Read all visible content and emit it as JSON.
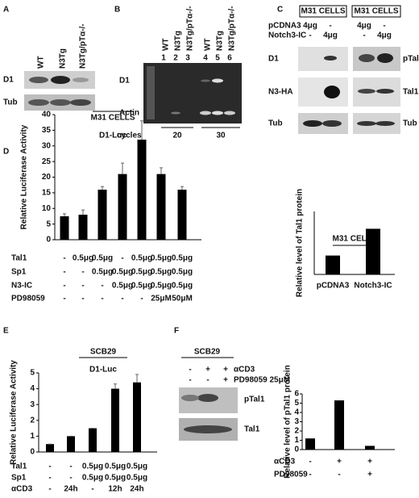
{
  "panels": [
    "A",
    "B",
    "C",
    "D",
    "E",
    "F"
  ],
  "blot_A": {
    "lanes": [
      "WT",
      "N3Tg",
      "N3Tg/pTα-/-"
    ],
    "rows": [
      "D1",
      "Tub"
    ]
  },
  "blot_B": {
    "lanes": [
      "WT",
      "N3Tg",
      "N3Tg/pTα-/-",
      "WT",
      "N3Tg",
      "N3Tg/pTα-/-"
    ],
    "lane_numbers": [
      1,
      2,
      3,
      4,
      5,
      6
    ],
    "rows": [
      "D1",
      "Actin"
    ],
    "cycles_label": "cycles",
    "cycles": [
      20,
      30
    ]
  },
  "blot_C": {
    "title": "M31 CELLS",
    "treatments": [
      {
        "name": "pCDNA3",
        "cells": [
          "4μg",
          "-"
        ]
      },
      {
        "name": "Notch3-IC",
        "cells": [
          "-",
          "4μg"
        ]
      }
    ],
    "rows_left": [
      "D1",
      "N3-HA",
      "Tub"
    ],
    "rows_right": [
      "pTal1",
      "Tal1",
      "Tub"
    ]
  },
  "blot_F": {
    "title": "SCB29",
    "treatments": [
      {
        "name": "αCD3",
        "cells": [
          "-",
          "+",
          "+"
        ]
      },
      {
        "name": "PD98059 25μM",
        "cells": [
          "-",
          "-",
          "+"
        ]
      }
    ],
    "rows": [
      "pTal1",
      "Tal1"
    ]
  },
  "chart_data": [
    {
      "type": "bar",
      "title": "M31 CELLS",
      "ylabel": "Relative level of Tal1 protein",
      "categories": [
        "pCDNA3",
        "Notch3-IC"
      ],
      "values": [
        1.2,
        2.9
      ],
      "ylim": [
        0,
        4
      ],
      "color": "#000000"
    },
    {
      "type": "bar",
      "title": "M31 CELLS",
      "subtitle": "D1-Luc",
      "ylabel": "Relative Luciferase Activity",
      "values": [
        7.5,
        8,
        16,
        21,
        32,
        21,
        16
      ],
      "errors": [
        0.8,
        1.5,
        1,
        3.5,
        6,
        2,
        1
      ],
      "ylim": [
        0,
        40
      ],
      "yticks": [
        0,
        5,
        10,
        15,
        20,
        25,
        30,
        35,
        40
      ],
      "color": "#000000",
      "conditions": [
        {
          "name": "Tal1",
          "cells": [
            "-",
            "0.5μg",
            "0.5μg",
            "-",
            "0.5μg",
            "0.5μg",
            "0.5μg"
          ]
        },
        {
          "name": "Sp1",
          "cells": [
            "-",
            "-",
            "0.5μg",
            "0.5μg",
            "0.5μg",
            "0.5μg",
            "0.5μg"
          ]
        },
        {
          "name": "N3-IC",
          "cells": [
            "-",
            "-",
            "-",
            "0.5μg",
            "0.5μg",
            "0.5μg",
            "0.5μg"
          ]
        },
        {
          "name": "PD98059",
          "cells": [
            "-",
            "-",
            "-",
            "-",
            "-",
            "25μM",
            "50μM"
          ]
        }
      ]
    },
    {
      "type": "bar",
      "title": "SCB29",
      "subtitle": "D1-Luc",
      "ylabel": "Relative Luciferase Activity",
      "values": [
        0.5,
        1.0,
        1.5,
        4.0,
        4.4
      ],
      "errors": [
        0,
        0,
        0,
        0.3,
        0.5
      ],
      "ylim": [
        0,
        5
      ],
      "yticks": [
        0,
        1,
        2,
        3,
        4,
        5
      ],
      "color": "#000000",
      "conditions": [
        {
          "name": "Tal1",
          "cells": [
            "-",
            "-",
            "0.5μg",
            "0.5μg",
            "0.5μg"
          ]
        },
        {
          "name": "Sp1",
          "cells": [
            "-",
            "-",
            "0.5μg",
            "0.5μg",
            "0.5μg"
          ]
        },
        {
          "name": "αCD3",
          "cells": [
            "-",
            "24h",
            "-",
            "12h",
            "24h"
          ]
        }
      ]
    },
    {
      "type": "bar",
      "ylabel": "Relative level of pTal1 protein",
      "values": [
        1.2,
        5.3,
        0.4
      ],
      "ylim": [
        0,
        6
      ],
      "yticks": [
        0,
        1,
        2,
        3,
        4,
        5,
        6
      ],
      "color": "#000000",
      "conditions": [
        {
          "name": "αCD3",
          "cells": [
            "-",
            "+",
            "+"
          ]
        },
        {
          "name": "PD98059",
          "cells": [
            "-",
            "-",
            "+"
          ]
        }
      ]
    }
  ]
}
